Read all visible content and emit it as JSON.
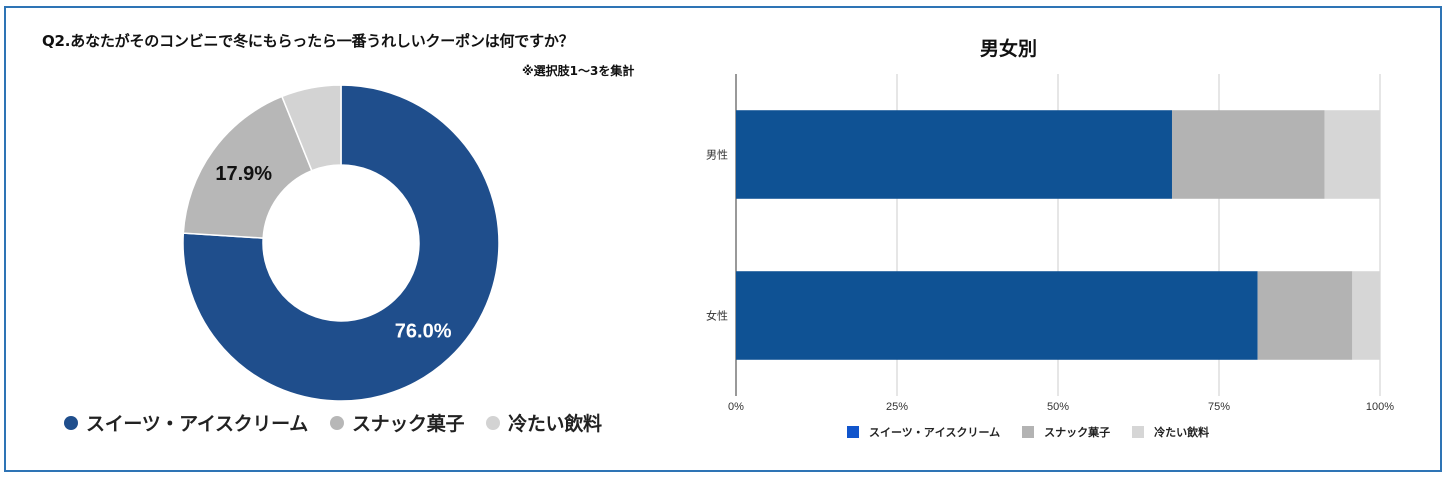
{
  "question": {
    "title": "Q2.あなたがそのコンビニで冬にもらったら一番うれしいクーポンは何ですか？",
    "note": "※選択肢1〜3を集計"
  },
  "chart_data": [
    {
      "type": "pie",
      "variant": "donut",
      "categories": [
        "スイーツ・アイスクリーム",
        "スナック菓子",
        "冷たい飲料"
      ],
      "values": [
        76.0,
        17.9,
        6.1
      ],
      "data_labels": [
        "76.0%",
        "17.9%",
        ""
      ],
      "colors": [
        "#1f4e8c",
        "#b7b7b7",
        "#d3d3d3"
      ],
      "legend": "bottom",
      "title": ""
    },
    {
      "type": "bar",
      "orientation": "horizontal",
      "stacked": "percent",
      "title": "男女別",
      "categories": [
        "男性",
        "女性"
      ],
      "series": [
        {
          "name": "スイーツ・アイスクリーム",
          "values": [
            67.7,
            81.0
          ],
          "color": "#0f5294"
        },
        {
          "name": "スナック菓子",
          "values": [
            23.7,
            14.7
          ],
          "color": "#b3b3b3"
        },
        {
          "name": "冷たい飲料",
          "values": [
            8.6,
            4.3
          ],
          "color": "#d6d6d6"
        }
      ],
      "xlim": [
        0,
        100
      ],
      "xticks": [
        "0%",
        "25%",
        "50%",
        "75%",
        "100%"
      ],
      "grid": true,
      "legend": "bottom",
      "legend_swatch_colors": [
        "#1155cc",
        "#b3b3b3",
        "#d6d6d6"
      ]
    }
  ]
}
